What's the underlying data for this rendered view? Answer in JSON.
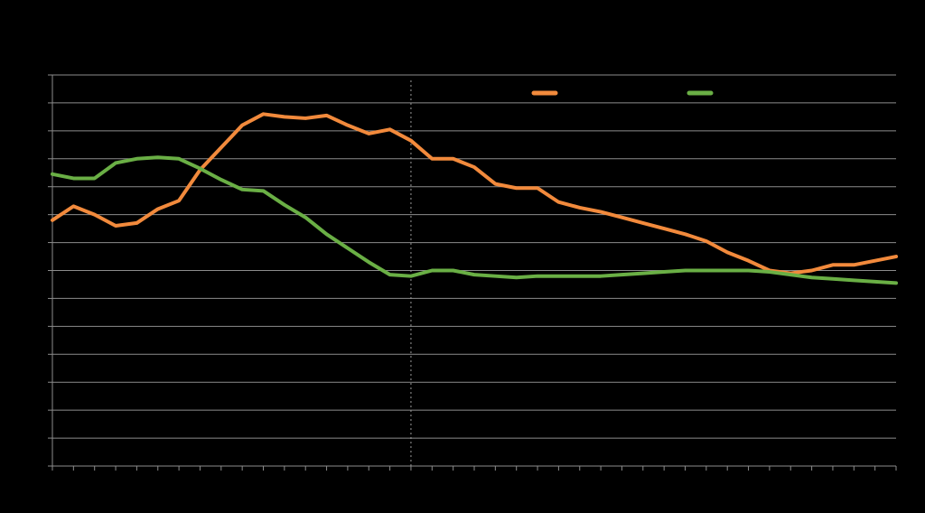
{
  "chart_data": {
    "type": "line",
    "title": "",
    "xlabel": "",
    "ylabel": "",
    "x": [
      1,
      2,
      3,
      4,
      5,
      6,
      7,
      8,
      9,
      10,
      11,
      12,
      13,
      14,
      15,
      16,
      17,
      18,
      19,
      20,
      21,
      22,
      23,
      24,
      25,
      26,
      27,
      28,
      29,
      30,
      31,
      32,
      33,
      34,
      35,
      36,
      37,
      38,
      39,
      40,
      41
    ],
    "xlim": [
      1,
      41
    ],
    "ylim": [
      0,
      14
    ],
    "y_gridlines": [
      1,
      2,
      3,
      4,
      5,
      6,
      7,
      8,
      9,
      10,
      11,
      12,
      13,
      14
    ],
    "grid": true,
    "vertical_marker_x": 18,
    "legend_position": "top-right",
    "series": [
      {
        "color": "#F28A3C",
        "values": [
          8.8,
          9.3,
          9.0,
          8.6,
          8.7,
          9.2,
          9.5,
          10.6,
          11.4,
          12.2,
          12.6,
          12.5,
          12.45,
          12.55,
          12.2,
          11.9,
          12.05,
          11.65,
          11.0,
          11.0,
          10.7,
          10.1,
          9.95,
          9.95,
          9.45,
          9.25,
          9.1,
          8.9,
          8.7,
          8.5,
          8.3,
          8.05,
          7.65,
          7.35,
          7.0,
          6.9,
          7.0,
          7.2,
          7.2,
          7.35,
          7.5
        ]
      },
      {
        "color": "#6AAF45",
        "values": [
          10.45,
          10.3,
          10.3,
          10.85,
          11.0,
          11.05,
          11.0,
          10.65,
          10.25,
          9.9,
          9.85,
          9.35,
          8.9,
          8.3,
          7.8,
          7.3,
          6.85,
          6.8,
          7.0,
          7.0,
          6.85,
          6.8,
          6.75,
          6.8,
          6.8,
          6.8,
          6.8,
          6.85,
          6.9,
          6.95,
          7.0,
          7.0,
          7.0,
          7.0,
          6.95,
          6.85,
          6.75,
          6.7,
          6.65,
          6.6,
          6.55
        ]
      }
    ]
  }
}
